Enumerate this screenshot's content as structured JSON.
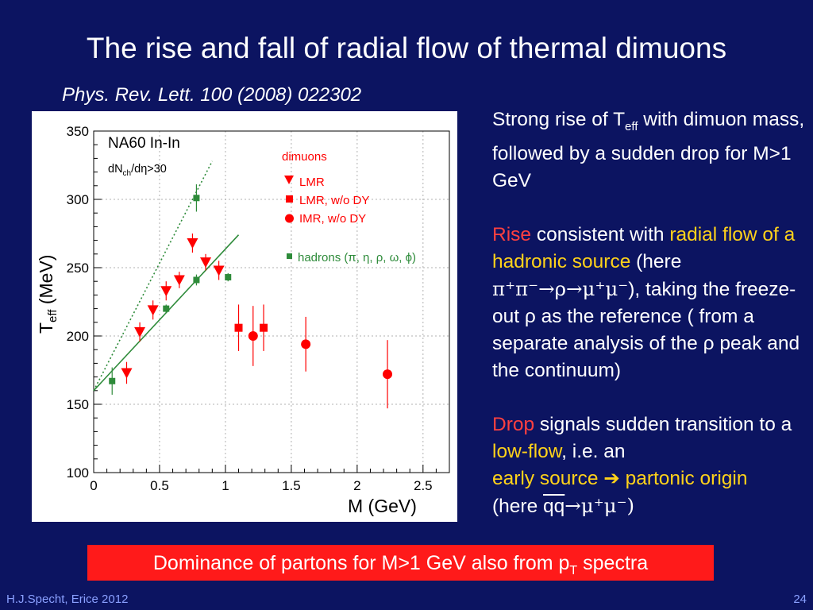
{
  "slide": {
    "title": "The rise and fall of radial flow of thermal dimuons",
    "subtitle": "Phys. Rev. Lett. 100 (2008) 022302",
    "footer_left": "H.J.Specht, Erice 2012",
    "page_number": "24",
    "banner": {
      "text_before": "Dominance of partons for  M>1 GeV also from p",
      "sub": "T",
      "text_after": " spectra"
    }
  },
  "right_text": {
    "p1": {
      "a": "Strong rise of T",
      "sub": "eff",
      "b": " with dimuon mass, followed by a sudden drop for M>1 GeV"
    },
    "p2": {
      "rise": "Rise",
      "a": " consistent with ",
      "radial": "radial flow of a hadronic source",
      "b": " (here ",
      "reaction": "π⁺π⁻→ρ→μ⁺μ⁻",
      "c": "),  taking the freeze-out  ρ as the reference ( from a separate analysis of the ρ peak and the continuum)"
    },
    "p3": {
      "drop": "Drop",
      "a": " signals sudden transition to a ",
      "lowflow": "low-flow",
      "b": ", i.e. an ",
      "early": "early source ➔ partonic origin",
      "c": "(here ",
      "qq": "qq",
      "d": "→μ⁺μ⁻)"
    }
  },
  "chart_data": {
    "type": "scatter",
    "xlabel": "M (GeV)",
    "ylabel_main": "T",
    "ylabel_sub": "eff",
    "ylabel_unit": " (MeV)",
    "xlim": [
      0,
      2.7
    ],
    "ylim": [
      100,
      350
    ],
    "xticks": [
      0,
      0.5,
      1,
      1.5,
      2,
      2.5
    ],
    "xtick_labels": [
      "0",
      "0.5",
      "1",
      "1.5",
      "2",
      "2.5"
    ],
    "yticks": [
      100,
      150,
      200,
      250,
      300,
      350
    ],
    "ytick_labels": [
      "100",
      "150",
      "200",
      "250",
      "300",
      "350"
    ],
    "grid": true,
    "annotation": {
      "system": "NA60 In-In",
      "cut_a": "dN",
      "cut_sub": "ch",
      "cut_b": "/dη>30"
    },
    "legend_title": "dimuons",
    "legend_hadrons": "hadrons (π, η, ρ, ω, ϕ)",
    "colors": {
      "dimuon": "#ff0000",
      "hadron": "#2e8b3a",
      "grid": "#b0b0b0"
    },
    "series": [
      {
        "name": "LMR",
        "marker": "triangle-down",
        "points": [
          [
            0.25,
            173,
            8
          ],
          [
            0.35,
            203,
            7
          ],
          [
            0.45,
            219,
            7
          ],
          [
            0.55,
            233,
            7
          ],
          [
            0.65,
            241,
            6
          ],
          [
            0.75,
            268,
            7
          ],
          [
            0.85,
            254,
            6
          ],
          [
            0.95,
            248,
            7
          ]
        ]
      },
      {
        "name": "LMR, w/o DY",
        "marker": "square",
        "points": [
          [
            1.1,
            206,
            17
          ],
          [
            1.29,
            206,
            17
          ]
        ]
      },
      {
        "name": "IMR,  w/o DY",
        "marker": "circle",
        "points": [
          [
            1.21,
            200,
            22
          ],
          [
            1.61,
            194,
            20
          ],
          [
            2.23,
            172,
            25
          ]
        ]
      },
      {
        "name": "hadrons",
        "marker": "square-small",
        "points": [
          [
            0.14,
            167,
            10
          ],
          [
            0.55,
            220,
            3
          ],
          [
            0.78,
            301,
            10
          ],
          [
            0.78,
            241,
            4
          ],
          [
            1.02,
            243,
            3
          ]
        ]
      }
    ],
    "fits": [
      {
        "style": "solid",
        "from": [
          0,
          160
        ],
        "to": [
          1.1,
          274
        ]
      },
      {
        "style": "dotted",
        "from": [
          0,
          160
        ],
        "to": [
          0.9,
          328
        ]
      }
    ]
  }
}
